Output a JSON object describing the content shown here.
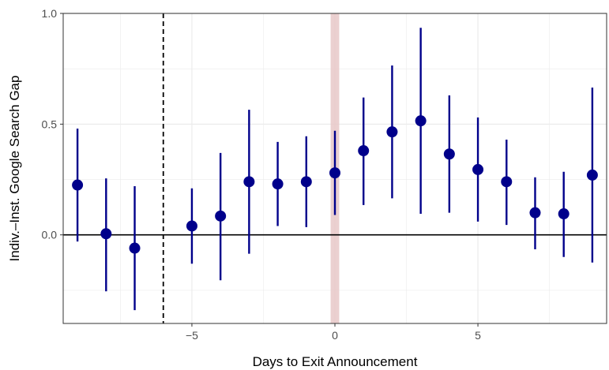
{
  "chart_data": {
    "type": "scatter",
    "subtype": "point-range (coefficient plot with confidence intervals)",
    "title": "",
    "xlabel": "Days to Exit Announcement",
    "ylabel": "Indiv.–Inst. Google Search Gap",
    "xlim": [
      -9.5,
      9.5
    ],
    "ylim": [
      -0.4,
      1.0
    ],
    "x_ticks": [
      -5,
      0,
      5
    ],
    "x_tick_labels": [
      "−5",
      "0",
      "5"
    ],
    "y_ticks": [
      0.0,
      0.5,
      1.0
    ],
    "y_tick_labels": [
      "0.0",
      "0.5",
      "1.0"
    ],
    "grid": true,
    "legend": "none",
    "reference_lines": {
      "horizontal_solid_at_y": 0,
      "vertical_dashed_at_x": -6,
      "shaded_band_x": [
        -0.15,
        0.15
      ]
    },
    "colors": {
      "points": "#00008B",
      "band": "#E8C8C8",
      "grid": "#EBEBEB"
    },
    "series": [
      {
        "points": [
          {
            "x": -9,
            "y": 0.225,
            "lo": -0.03,
            "hi": 0.48
          },
          {
            "x": -8,
            "y": 0.005,
            "lo": -0.255,
            "hi": 0.255
          },
          {
            "x": -7,
            "y": -0.06,
            "lo": -0.34,
            "hi": 0.22
          },
          {
            "x": -5,
            "y": 0.04,
            "lo": -0.13,
            "hi": 0.21
          },
          {
            "x": -4,
            "y": 0.085,
            "lo": -0.205,
            "hi": 0.37
          },
          {
            "x": -3,
            "y": 0.24,
            "lo": -0.085,
            "hi": 0.565
          },
          {
            "x": -2,
            "y": 0.23,
            "lo": 0.04,
            "hi": 0.42
          },
          {
            "x": -1,
            "y": 0.24,
            "lo": 0.035,
            "hi": 0.445
          },
          {
            "x": 0,
            "y": 0.28,
            "lo": 0.09,
            "hi": 0.47
          },
          {
            "x": 1,
            "y": 0.38,
            "lo": 0.135,
            "hi": 0.62
          },
          {
            "x": 2,
            "y": 0.465,
            "lo": 0.165,
            "hi": 0.765
          },
          {
            "x": 3,
            "y": 0.515,
            "lo": 0.095,
            "hi": 0.935
          },
          {
            "x": 4,
            "y": 0.365,
            "lo": 0.1,
            "hi": 0.63
          },
          {
            "x": 5,
            "y": 0.295,
            "lo": 0.06,
            "hi": 0.53
          },
          {
            "x": 6,
            "y": 0.24,
            "lo": 0.045,
            "hi": 0.43
          },
          {
            "x": 7,
            "y": 0.1,
            "lo": -0.065,
            "hi": 0.26
          },
          {
            "x": 8,
            "y": 0.095,
            "lo": -0.1,
            "hi": 0.285
          },
          {
            "x": 9,
            "y": 0.27,
            "lo": -0.125,
            "hi": 0.665
          }
        ]
      }
    ]
  }
}
